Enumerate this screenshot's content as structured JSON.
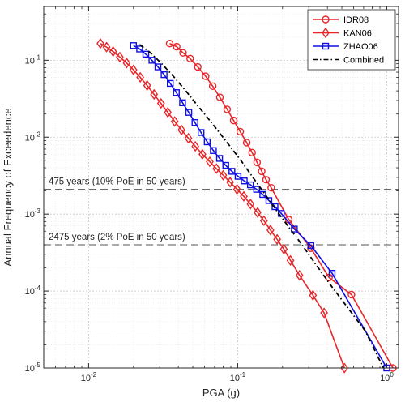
{
  "chart_data": {
    "type": "line",
    "title": "",
    "xlabel": "PGA (g)",
    "ylabel": "Annual Frequency of Exceedence",
    "xscale": "log",
    "yscale": "log",
    "xlim": [
      0.005,
      1.2
    ],
    "ylim": [
      1e-05,
      0.5
    ],
    "grid": true,
    "legend_position": "top-right",
    "x_ticks": [
      {
        "value": 0.01,
        "base": "10",
        "exp": "-2"
      },
      {
        "value": 0.1,
        "base": "10",
        "exp": "-1"
      },
      {
        "value": 1,
        "base": "10",
        "exp": "0"
      }
    ],
    "y_ticks": [
      {
        "value": 1e-05,
        "base": "10",
        "exp": "-5"
      },
      {
        "value": 0.0001,
        "base": "10",
        "exp": "-4"
      },
      {
        "value": 0.001,
        "base": "10",
        "exp": "-3"
      },
      {
        "value": 0.01,
        "base": "10",
        "exp": "-2"
      },
      {
        "value": 0.1,
        "base": "10",
        "exp": "-1"
      }
    ],
    "series": [
      {
        "name": "IDR08",
        "color": "#e8262a",
        "marker": "circle",
        "line_style": "solid",
        "x": [
          0.035,
          0.039,
          0.043,
          0.048,
          0.054,
          0.061,
          0.068,
          0.076,
          0.085,
          0.094,
          0.104,
          0.115,
          0.125,
          0.135,
          0.145,
          0.155,
          0.168,
          0.22,
          0.31,
          0.41,
          0.58,
          1.1
        ],
        "y": [
          0.165,
          0.15,
          0.125,
          0.105,
          0.082,
          0.062,
          0.046,
          0.033,
          0.023,
          0.0165,
          0.0118,
          0.0085,
          0.0063,
          0.0047,
          0.0036,
          0.0028,
          0.0022,
          0.00085,
          0.00036,
          0.00015,
          9e-05,
          1e-05
        ]
      },
      {
        "name": "KAN06",
        "color": "#e8262a",
        "marker": "diamond",
        "line_style": "solid",
        "x": [
          0.012,
          0.0132,
          0.0146,
          0.0162,
          0.018,
          0.02,
          0.0222,
          0.0247,
          0.0275,
          0.0306,
          0.034,
          0.0378,
          0.042,
          0.0467,
          0.052,
          0.058,
          0.065,
          0.072,
          0.08,
          0.089,
          0.099,
          0.11,
          0.122,
          0.136,
          0.15,
          0.166,
          0.184,
          0.204,
          0.226,
          0.26,
          0.32,
          0.38,
          0.52
        ],
        "y": [
          0.165,
          0.148,
          0.13,
          0.11,
          0.092,
          0.075,
          0.06,
          0.047,
          0.036,
          0.0275,
          0.021,
          0.016,
          0.0124,
          0.0097,
          0.0076,
          0.006,
          0.0048,
          0.0039,
          0.0032,
          0.0026,
          0.0021,
          0.0017,
          0.00135,
          0.00105,
          0.00082,
          0.00062,
          0.00047,
          0.00035,
          0.00025,
          0.00016,
          8.8e-05,
          5.2e-05,
          1e-05
        ]
      },
      {
        "name": "ZHAO06",
        "color": "#1010e0",
        "marker": "square",
        "line_style": "solid",
        "x": [
          0.02,
          0.022,
          0.0242,
          0.0266,
          0.0292,
          0.0321,
          0.0353,
          0.0388,
          0.0427,
          0.047,
          0.0517,
          0.0568,
          0.0625,
          0.0687,
          0.0756,
          0.0832,
          0.0915,
          0.1006,
          0.1107,
          0.1218,
          0.134,
          0.1474,
          0.162,
          0.178,
          0.196,
          0.24,
          0.31,
          0.43,
          1.0
        ],
        "y": [
          0.155,
          0.14,
          0.12,
          0.1,
          0.082,
          0.065,
          0.05,
          0.038,
          0.028,
          0.021,
          0.0155,
          0.0115,
          0.0087,
          0.0067,
          0.0053,
          0.0043,
          0.0036,
          0.0031,
          0.0027,
          0.0024,
          0.0021,
          0.0018,
          0.0015,
          0.00125,
          0.00102,
          0.00064,
          0.00039,
          0.00017,
          1e-05
        ]
      },
      {
        "name": "Combined",
        "color": "#000000",
        "marker": "none",
        "line_style": "dashdot",
        "x": [
          0.022,
          0.026,
          0.031,
          0.037,
          0.044,
          0.052,
          0.062,
          0.074,
          0.088,
          0.105,
          0.125,
          0.15,
          0.18,
          0.22,
          0.27,
          0.33,
          0.42,
          0.55,
          0.72,
          0.95
        ],
        "y": [
          0.16,
          0.125,
          0.09,
          0.062,
          0.042,
          0.028,
          0.0185,
          0.012,
          0.0078,
          0.005,
          0.0031,
          0.0019,
          0.00115,
          0.00068,
          0.0004,
          0.00023,
          0.00012,
          6e-05,
          3e-05,
          1e-05
        ]
      }
    ],
    "reference_lines": [
      {
        "y": 0.0021,
        "label": "475 years (10% PoE in 50 years)"
      },
      {
        "y": 0.0004,
        "label": "2475 years (2% PoE in 50 years)"
      }
    ]
  }
}
